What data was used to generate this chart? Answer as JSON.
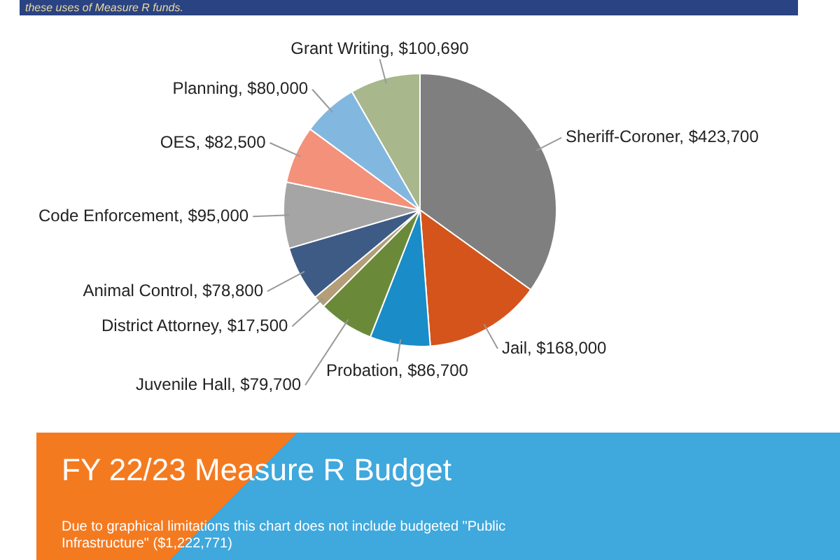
{
  "chart_data": {
    "type": "pie",
    "title": "FY 22/23 Measure R Budget",
    "categories": [
      "Sheriff-Coroner",
      "Jail",
      "Probation",
      "Juvenile Hall",
      "District Attorney",
      "Animal Control",
      "Code Enforcement",
      "OES",
      "Planning",
      "Grant Writing"
    ],
    "values": [
      423700,
      168000,
      86700,
      79700,
      17500,
      78800,
      95000,
      82500,
      80000,
      100690
    ],
    "value_labels": [
      "$423,700",
      "$168,000",
      "$86,700",
      "$79,700",
      "$17,500",
      "$78,800",
      "$95,000",
      "$82,500",
      "$80,000",
      "$100,690"
    ],
    "colors": [
      "#7f7f7f",
      "#d4541c",
      "#1a8cc8",
      "#6a8a3a",
      "#b39e78",
      "#3e5b85",
      "#a5a5a5",
      "#f3917a",
      "#82b8e0",
      "#a8b78c"
    ],
    "annotations": [
      "these uses of Measure R funds.",
      "Due to graphical limitations this chart does not include budgeted \"Public Infrastructure\" ($1,222,771)"
    ],
    "legend": false
  }
}
